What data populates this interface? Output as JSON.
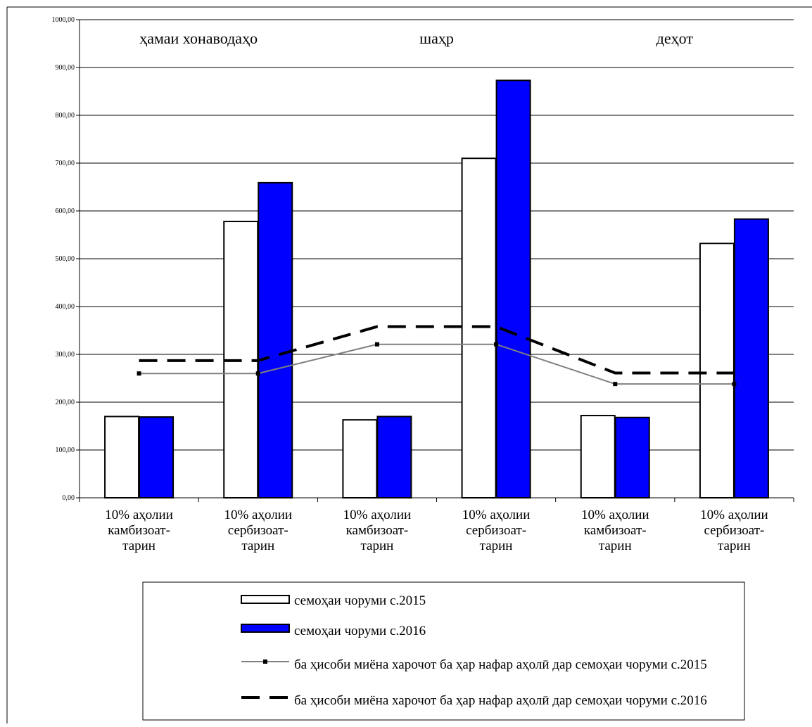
{
  "chart_data": {
    "type": "bar",
    "group_titles": [
      "ҳамаи хонаводаҳо",
      "шаҳр",
      "деҳот"
    ],
    "categories": [
      [
        "10% аҳолии",
        "камбизоат-",
        "тарин"
      ],
      [
        "10% аҳолии",
        "сербизоат-",
        "тарин"
      ],
      [
        "10% аҳолии",
        "камбизоат-",
        "тарин"
      ],
      [
        "10% аҳолии",
        "сербизоат-",
        "тарин"
      ],
      [
        "10% аҳолии",
        "камбизоат-",
        "тарин"
      ],
      [
        "10% аҳолии",
        "сербизоат-",
        "тарин"
      ]
    ],
    "y_ticks": [
      "0,00",
      "100,00",
      "200,00",
      "300,00",
      "400,00",
      "500,00",
      "600,00",
      "700,00",
      "800,00",
      "900,00",
      "1000,00"
    ],
    "ylim": [
      0,
      1000
    ],
    "grid": true,
    "legend_position": "bottom",
    "series": [
      {
        "name": "семоҳаи чоруми с.2015",
        "kind": "bar",
        "color": "#ffffff",
        "values": [
          170,
          578,
          163,
          710,
          172,
          532
        ]
      },
      {
        "name": "семоҳаи чоруми с.2016",
        "kind": "bar",
        "color": "#0000ff",
        "values": [
          169,
          659,
          170,
          873,
          168,
          583
        ]
      },
      {
        "name": "ба ҳисоби миёна харочот ба ҳар нафар аҳолӣ дар семоҳаи чоруми с.2015",
        "kind": "line",
        "color": "#808080",
        "values": [
          260,
          260,
          321,
          321,
          238,
          238
        ]
      },
      {
        "name": "ба ҳисоби миёна харочот ба ҳар нафар аҳолӣ дар семоҳаи чоруми с.2016",
        "kind": "dashed-line",
        "color": "#000000",
        "values": [
          287,
          287,
          358,
          358,
          261,
          261
        ]
      }
    ]
  }
}
